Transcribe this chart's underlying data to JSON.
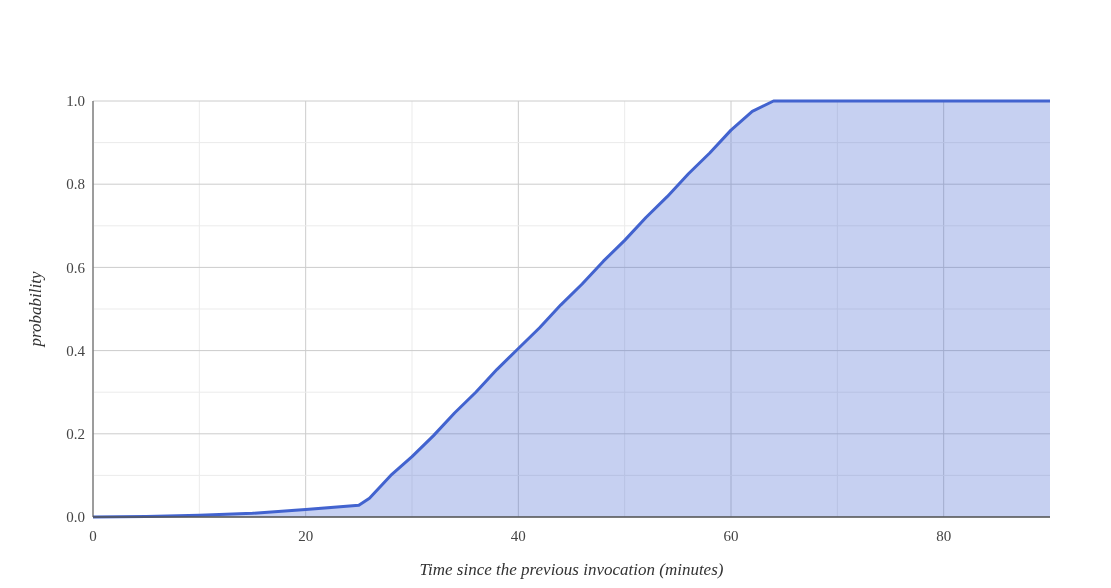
{
  "chart_data": {
    "type": "area",
    "xlabel": "Time since the previous invocation (minutes)",
    "ylabel": "probability",
    "x": [
      0,
      5,
      10,
      15,
      20,
      25,
      26,
      28,
      30,
      32,
      34,
      36,
      38,
      40,
      42,
      44,
      46,
      48,
      50,
      52,
      54,
      56,
      58,
      60,
      62,
      64,
      90
    ],
    "series": [
      {
        "color": "#4263cf",
        "values": [
          0,
          0.001,
          0.004,
          0.009,
          0.018,
          0.028,
          0.045,
          0.1,
          0.145,
          0.195,
          0.25,
          0.3,
          0.355,
          0.405,
          0.455,
          0.51,
          0.56,
          0.615,
          0.665,
          0.72,
          0.77,
          0.825,
          0.875,
          0.93,
          0.975,
          1.0,
          1.0
        ]
      }
    ],
    "xlim": [
      0,
      90
    ],
    "xticks": [
      0,
      {
        "value": 10,
        "label": null
      },
      20,
      {
        "value": 30,
        "label": null
      },
      40,
      {
        "value": 50,
        "label": null
      },
      60,
      {
        "value": 70,
        "label": null
      },
      80
    ],
    "ylim": [
      0,
      1
    ],
    "yticks": [
      {
        "value": 0,
        "label": "0.0"
      },
      {
        "value": 0.1,
        "label": null
      },
      0.2,
      {
        "value": 0.3,
        "label": null
      },
      0.4,
      {
        "value": 0.5,
        "label": null
      },
      0.6,
      {
        "value": 0.7,
        "label": null
      },
      0.8,
      {
        "value": 0.9,
        "label": null
      },
      {
        "value": 1,
        "label": "1.0"
      }
    ],
    "grid": true
  }
}
